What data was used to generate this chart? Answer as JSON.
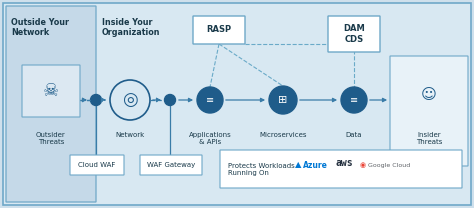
{
  "bg_outer": "#cfe0ec",
  "bg_main": "#d8e8f2",
  "bg_outside_panel": "#c5d9e8",
  "bg_insider_panel": "#e8f2f8",
  "border_color": "#6fa8c8",
  "icon_blue": "#1f5c8a",
  "text_dark": "#1a3a4a",
  "arrow_color": "#3a7ca8",
  "dashed_color": "#6aaac8",
  "white": "#ffffff",
  "outside_label": "Outside Your\nNetwork",
  "inside_label": "Inside Your\nOrganization",
  "nodes": [
    "Outsider\nThreats",
    "Network",
    "Applications\n& APIs",
    "Microservices",
    "Data",
    "Insider\nThreats"
  ],
  "rasp_label": "RASP",
  "dam_label": "DAM\nCDS",
  "cloud_waf_label": "Cloud WAF",
  "waf_gateway_label": "WAF Gateway",
  "protects_text": "Protects Workloads\nRunning On",
  "azure_text": "Azure",
  "aws_text": "aws",
  "gcloud_text": "Google Cloud"
}
